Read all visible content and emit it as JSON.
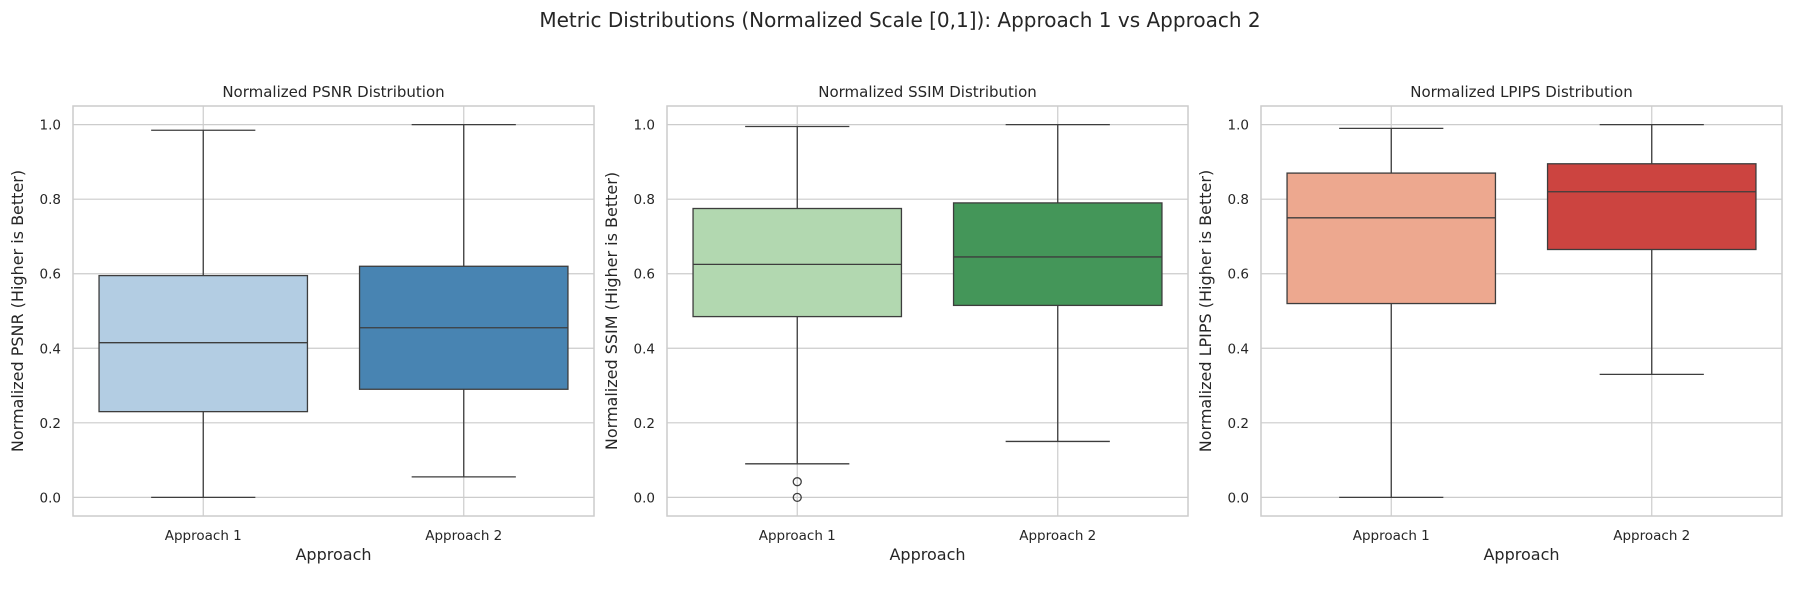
{
  "figure_title": "Metric Distributions (Normalized Scale [0,1]): Approach 1 vs Approach 2",
  "chart_data": [
    {
      "type": "box",
      "title": "Normalized PSNR Distribution",
      "xlabel": "Approach",
      "ylabel": "Normalized PSNR (Higher is Better)",
      "ylim": [
        -0.05,
        1.05
      ],
      "yticks": [
        "0.0",
        "0.2",
        "0.4",
        "0.6",
        "0.8",
        "1.0"
      ],
      "grid": true,
      "categories": [
        "Approach 1",
        "Approach 2"
      ],
      "boxes": [
        {
          "name": "Approach 1",
          "whislo": 0.0,
          "q1": 0.23,
          "med": 0.415,
          "q3": 0.595,
          "whishi": 0.985,
          "fliers": [],
          "color": "#b3cde3"
        },
        {
          "name": "Approach 2",
          "whislo": 0.055,
          "q1": 0.29,
          "med": 0.455,
          "q3": 0.62,
          "whishi": 1.0,
          "fliers": [],
          "color": "#4884b2"
        }
      ]
    },
    {
      "type": "box",
      "title": "Normalized SSIM Distribution",
      "xlabel": "Approach",
      "ylabel": "Normalized SSIM (Higher is Better)",
      "ylim": [
        -0.05,
        1.05
      ],
      "yticks": [
        "0.0",
        "0.2",
        "0.4",
        "0.6",
        "0.8",
        "1.0"
      ],
      "grid": true,
      "categories": [
        "Approach 1",
        "Approach 2"
      ],
      "boxes": [
        {
          "name": "Approach 1",
          "whislo": 0.09,
          "q1": 0.485,
          "med": 0.625,
          "q3": 0.775,
          "whishi": 0.995,
          "fliers": [
            0.042,
            0.0
          ],
          "color": "#b2d8b0"
        },
        {
          "name": "Approach 2",
          "whislo": 0.15,
          "q1": 0.515,
          "med": 0.645,
          "q3": 0.79,
          "whishi": 1.0,
          "fliers": [],
          "color": "#449659"
        }
      ]
    },
    {
      "type": "box",
      "title": "Normalized LPIPS Distribution",
      "xlabel": "Approach",
      "ylabel": "Normalized LPIPS (Higher is Better)",
      "ylim": [
        -0.05,
        1.05
      ],
      "yticks": [
        "0.0",
        "0.2",
        "0.4",
        "0.6",
        "0.8",
        "1.0"
      ],
      "grid": true,
      "categories": [
        "Approach 1",
        "Approach 2"
      ],
      "boxes": [
        {
          "name": "Approach 1",
          "whislo": 0.0,
          "q1": 0.52,
          "med": 0.75,
          "q3": 0.87,
          "whishi": 0.99,
          "fliers": [],
          "color": "#eda88f"
        },
        {
          "name": "Approach 2",
          "whislo": 0.33,
          "q1": 0.665,
          "med": 0.82,
          "q3": 0.895,
          "whishi": 1.0,
          "fliers": [],
          "color": "#cc4440"
        }
      ]
    }
  ]
}
